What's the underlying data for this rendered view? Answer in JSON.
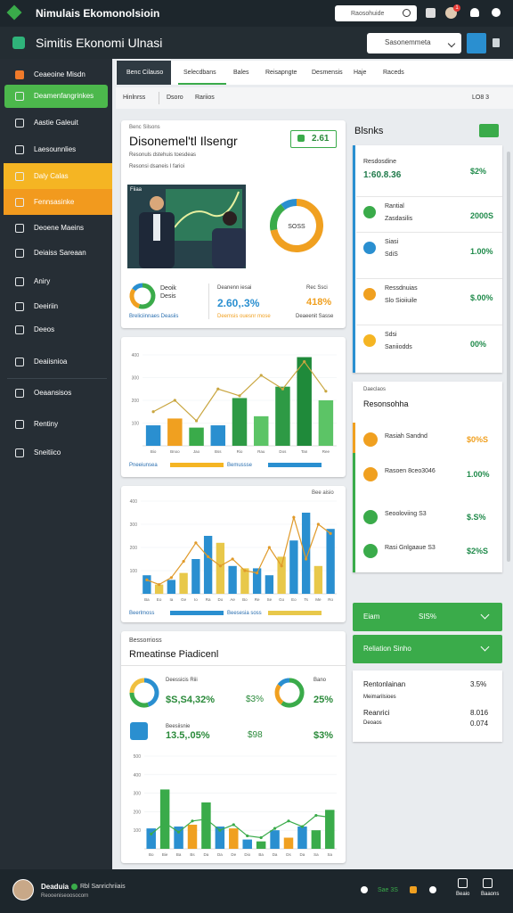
{
  "header": {
    "title": "Nimulais Ekomonolsioin",
    "search": "Raosohuide",
    "badge": "1"
  },
  "subheader": {
    "title": "Simitis Ekonomi Ulnasi",
    "select": "Sasonemmeta"
  },
  "sidebar": [
    "Ceaeoine Misdn",
    "Deamenfangrinkes",
    "Aastie Galeuit",
    "Laesounnlies",
    "Daly Calas",
    "Fennsasinke",
    "Deoene Maeins",
    "Deiaiss Sareaan",
    "Aniry",
    "Deeiriin",
    "Deeos",
    "Deaiisnioa",
    "Oeaansisos",
    "Rentiny",
    "Sneitiico"
  ],
  "tabs": [
    "Benc Cilauso",
    "Selecdbans",
    "Bales",
    "Reisapngte",
    "Desmensis",
    "Haje",
    "Raceds"
  ],
  "subtabs": [
    "Hinlnrss",
    "Dsoro",
    "Rariios"
  ],
  "view_select": "LO8 3",
  "overview": {
    "label": "Benc Silsons",
    "title": "Disonemel'tl Ilsengr",
    "badge": "2.61",
    "notes": [
      "Resonuls dstehuis toesdeas",
      "Resonsi dsaneis I farioi"
    ],
    "image_label": "Fiiaa",
    "donut": {
      "label": "SOSS",
      "values": [
        72,
        18,
        10
      ],
      "colors": [
        "#f0a020",
        "#3aab4a",
        "#2a8fd0"
      ]
    },
    "stat_donut": {
      "values": [
        55,
        30,
        15
      ],
      "colors": [
        "#3aab4a",
        "#f0a020",
        "#2a8fd0"
      ]
    },
    "stat_title": "Deoik",
    "stat_sub": "Desis",
    "stat_caption": "Breliciinnaes Deasiis",
    "mid_label": "Deanenn iesai",
    "mid_value": "2.60,.3%",
    "mid_caption": "Deemsis ouesnr mose",
    "right_label": "Rec Ssci",
    "right_value": "418%",
    "right_caption": "Deaeenit Sasse"
  },
  "chart_1": {
    "ylim": [
      0,
      400
    ],
    "yticks": [
      100,
      200,
      300,
      400
    ],
    "categories": [
      "Bio",
      "Bnoo",
      "Jao",
      "Bss",
      "Rio",
      "Rau",
      "Dos",
      "Tan",
      "Ree"
    ],
    "values": [
      90,
      120,
      80,
      90,
      210,
      130,
      260,
      390,
      200
    ],
    "colors": [
      "#2a8fd0",
      "#f0a020",
      "#3aab4a",
      "#2a8fd0",
      "#2e9a45",
      "#5cc466",
      "#2e9a45",
      "#1f8a3a",
      "#5cc466"
    ],
    "line": [
      150,
      200,
      110,
      250,
      220,
      310,
      250,
      370,
      240
    ],
    "line_color": "#c9a640",
    "legend": [
      "Pneeiunsea",
      "Bemussse"
    ]
  },
  "chart_2": {
    "label": "Bee aisio",
    "ylim": [
      0,
      400
    ],
    "yticks": [
      100,
      200,
      300,
      400
    ],
    "categories": [
      "Ba",
      "Eo",
      "Ia",
      "Ge",
      "Io",
      "Ra",
      "Do",
      "Ae",
      "Bo",
      "Re",
      "Se",
      "Go",
      "Eo",
      "Ts",
      "Me",
      "Ro"
    ],
    "values": [
      80,
      40,
      60,
      90,
      150,
      250,
      220,
      120,
      110,
      110,
      80,
      160,
      230,
      350,
      120,
      280
    ],
    "colors": [
      "#2a8fd0",
      "#e8c84a",
      "#2a8fd0",
      "#e8c84a",
      "#2a8fd0",
      "#2a8fd0",
      "#e8c84a",
      "#2a8fd0",
      "#e8c84a",
      "#2a8fd0",
      "#2a8fd0",
      "#e8c84a",
      "#2a8fd0",
      "#2a8fd0",
      "#e8c84a",
      "#2a8fd0"
    ],
    "line": [
      60,
      40,
      70,
      140,
      220,
      160,
      120,
      150,
      100,
      90,
      200,
      120,
      330,
      150,
      300,
      260
    ],
    "line_color": "#e09a2a",
    "legend": [
      "Beerlmoss",
      "Beesesia soss"
    ]
  },
  "results": {
    "label": "Bessorrioss",
    "title": "Rmeatinse Piadicenl",
    "donut_1": {
      "label": "Deessicis Riii",
      "value": "$S,S4,32%",
      "values": [
        45,
        30,
        25
      ],
      "colors": [
        "#2a8fd0",
        "#3aab4a",
        "#f0c040"
      ]
    },
    "mid_1": "$3%",
    "donut_2": {
      "label": "Bano",
      "value": "25%",
      "values": [
        60,
        25,
        15
      ],
      "colors": [
        "#3aab4a",
        "#f0a020",
        "#2a8fd0"
      ]
    },
    "row_2": {
      "label": "Beesiisnie",
      "value": "13.5,.05%",
      "mid": "$98",
      "right": "$3%"
    }
  },
  "chart_3": {
    "ylim": [
      0,
      500
    ],
    "yticks": [
      100,
      200,
      300,
      400,
      500
    ],
    "categories": [
      "Bo",
      "Bie",
      "Ba",
      "Bs",
      "Da",
      "Da",
      "De",
      "Dio",
      "Ba",
      "Da",
      "Ds",
      "Da",
      "Sa",
      "Sa"
    ],
    "values": [
      110,
      320,
      120,
      130,
      250,
      120,
      110,
      50,
      40,
      100,
      60,
      120,
      100,
      210
    ],
    "colors": [
      "#2a8fd0",
      "#3aab4a",
      "#2a8fd0",
      "#f0a020",
      "#3aab4a",
      "#2a8fd0",
      "#f0a020",
      "#2a8fd0",
      "#3aab4a",
      "#2a8fd0",
      "#f0a020",
      "#2a8fd0",
      "#3aab4a",
      "#3aab4a"
    ],
    "line": [
      80,
      140,
      90,
      150,
      160,
      100,
      130,
      70,
      60,
      110,
      150,
      120,
      180,
      170
    ],
    "line_color": "#3aab4a"
  },
  "panel_1": {
    "title": "Blsnks",
    "items": [
      {
        "label": "Resdosdine",
        "sub": "1:60.8.36",
        "value": "$2%"
      },
      {
        "label": "Rantial",
        "sub": "Zasdasilis",
        "value": "2000S"
      },
      {
        "label": "Siasi",
        "sub": "SdiS",
        "value": "1.00%"
      },
      {
        "label": "Ressdnuias",
        "sub": "Slo Sioiiuile",
        "value": "$.00%"
      },
      {
        "label": "Sdsi",
        "sub": "Saniiodds",
        "value": "00%"
      }
    ]
  },
  "panel_2": {
    "label": "Daeclaos",
    "title": "Resonsohha",
    "items": [
      {
        "label": "Rasiah Sandnd",
        "value": "$0%S"
      },
      {
        "label": "Rasoen 8ceo3046",
        "value": "1.00%"
      },
      {
        "label": "Seooloviing S3",
        "value": "$.S%"
      },
      {
        "label": "Rasi Gnlgaaue S3",
        "value": "$2%S"
      }
    ]
  },
  "accordion": [
    {
      "label": "Eiam",
      "value": "SIS%"
    },
    {
      "label": "Reliation Sinho"
    }
  ],
  "summary": [
    {
      "label": "Rentonlainan",
      "value": "3.5%"
    },
    {
      "label": "Meimarilsioes"
    },
    {
      "label": "Reanrici",
      "value": "8.016"
    },
    {
      "label": "Deoaos",
      "value": "0.074"
    }
  ],
  "footer": {
    "user": "Deaduia",
    "status": "Rbl Sanrichriiais",
    "sub": "Reooeniseoosocorn",
    "stat": "Sae 3S",
    "actions": [
      "Beaio",
      "Baaons"
    ]
  }
}
